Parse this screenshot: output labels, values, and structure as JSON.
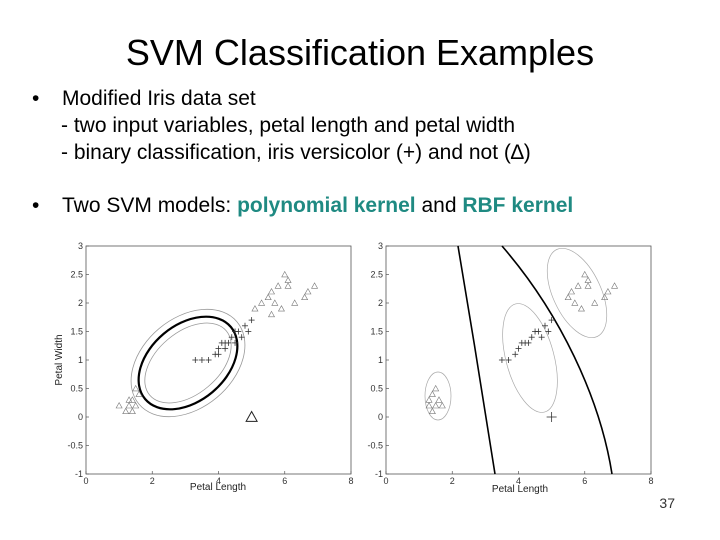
{
  "slide": {
    "title": "SVM Classification Examples",
    "bullet1": {
      "text": "Modified Iris data set",
      "sub1": "- two input variables, petal length and petal width",
      "sub2_pre": "- binary classification, iris versicolor (+) and not (",
      "sub2_delta": "∆",
      "sub2_post": ")"
    },
    "bullet2": {
      "pre": "Two SVM models: ",
      "kernel1": "polynomial kernel",
      "mid": " and ",
      "kernel2": "RBF kernel"
    },
    "page_number": "37"
  },
  "chart_data": [
    {
      "type": "scatter",
      "kernel": "polynomial",
      "xlabel": "Petal Length",
      "ylabel": "Petal Width",
      "xlim": [
        0,
        8
      ],
      "ylim": [
        -1,
        3
      ],
      "xticks": [
        "0",
        "2",
        "4",
        "6",
        "8"
      ],
      "yticks": [
        "-1",
        "-0.5",
        "0",
        "0.5",
        "1",
        "1.5",
        "2",
        "2.5",
        "3"
      ],
      "series": [
        {
          "marker": "+",
          "points": [
            [
              3.3,
              1.0
            ],
            [
              3.5,
              1.0
            ],
            [
              3.7,
              1.0
            ],
            [
              3.9,
              1.1
            ],
            [
              4.0,
              1.2
            ],
            [
              4.1,
              1.3
            ],
            [
              4.2,
              1.3
            ],
            [
              4.3,
              1.3
            ],
            [
              4.4,
              1.4
            ],
            [
              4.5,
              1.5
            ],
            [
              4.6,
              1.5
            ],
            [
              4.7,
              1.4
            ],
            [
              4.8,
              1.6
            ],
            [
              4.9,
              1.5
            ],
            [
              5.0,
              1.7
            ],
            [
              4.5,
              1.3
            ],
            [
              4.2,
              1.2
            ],
            [
              4.0,
              1.1
            ]
          ]
        },
        {
          "marker": "triangle",
          "points": [
            [
              1.0,
              0.2
            ],
            [
              1.2,
              0.1
            ],
            [
              1.3,
              0.2
            ],
            [
              1.4,
              0.3
            ],
            [
              1.5,
              0.2
            ],
            [
              1.6,
              0.4
            ],
            [
              1.4,
              0.1
            ],
            [
              1.5,
              0.5
            ],
            [
              1.3,
              0.3
            ],
            [
              5.0,
              0.0
            ],
            [
              5.1,
              1.9
            ],
            [
              5.3,
              2.0
            ],
            [
              5.5,
              2.1
            ],
            [
              5.6,
              2.2
            ],
            [
              5.8,
              2.3
            ],
            [
              6.0,
              2.5
            ],
            [
              6.1,
              2.3
            ],
            [
              5.6,
              1.8
            ],
            [
              5.9,
              1.9
            ],
            [
              6.3,
              2.0
            ],
            [
              6.7,
              2.2
            ],
            [
              6.6,
              2.1
            ],
            [
              6.9,
              2.3
            ],
            [
              5.7,
              2.0
            ],
            [
              6.1,
              2.4
            ]
          ]
        }
      ]
    },
    {
      "type": "scatter",
      "kernel": "RBF",
      "xlabel": "Petal Length",
      "ylabel": "",
      "xlim": [
        0,
        8
      ],
      "ylim": [
        -1,
        3
      ],
      "xticks": [
        "0",
        "2",
        "4",
        "6",
        "8"
      ],
      "yticks": [
        "-1",
        "-0.5",
        "0",
        "0.5",
        "1",
        "1.5",
        "2",
        "2.5",
        "3"
      ],
      "series": [
        {
          "marker": "+",
          "points": [
            [
              3.5,
              1.0
            ],
            [
              3.7,
              1.0
            ],
            [
              3.9,
              1.1
            ],
            [
              4.0,
              1.2
            ],
            [
              4.1,
              1.3
            ],
            [
              4.2,
              1.3
            ],
            [
              4.3,
              1.3
            ],
            [
              4.4,
              1.4
            ],
            [
              4.5,
              1.5
            ],
            [
              4.6,
              1.5
            ],
            [
              4.7,
              1.4
            ],
            [
              4.8,
              1.6
            ],
            [
              4.9,
              1.5
            ],
            [
              5.0,
              1.7
            ],
            [
              5.0,
              0.0
            ]
          ]
        },
        {
          "marker": "triangle",
          "points": [
            [
              1.3,
              0.2
            ],
            [
              1.4,
              0.1
            ],
            [
              1.5,
              0.2
            ],
            [
              1.6,
              0.3
            ],
            [
              1.4,
              0.4
            ],
            [
              1.5,
              0.5
            ],
            [
              1.3,
              0.3
            ],
            [
              1.7,
              0.2
            ],
            [
              5.5,
              2.1
            ],
            [
              5.6,
              2.2
            ],
            [
              5.8,
              2.3
            ],
            [
              6.0,
              2.5
            ],
            [
              6.1,
              2.3
            ],
            [
              5.7,
              2.0
            ],
            [
              5.9,
              1.9
            ],
            [
              6.3,
              2.0
            ],
            [
              6.7,
              2.2
            ],
            [
              6.6,
              2.1
            ],
            [
              6.9,
              2.3
            ],
            [
              6.1,
              2.4
            ]
          ]
        }
      ]
    }
  ]
}
